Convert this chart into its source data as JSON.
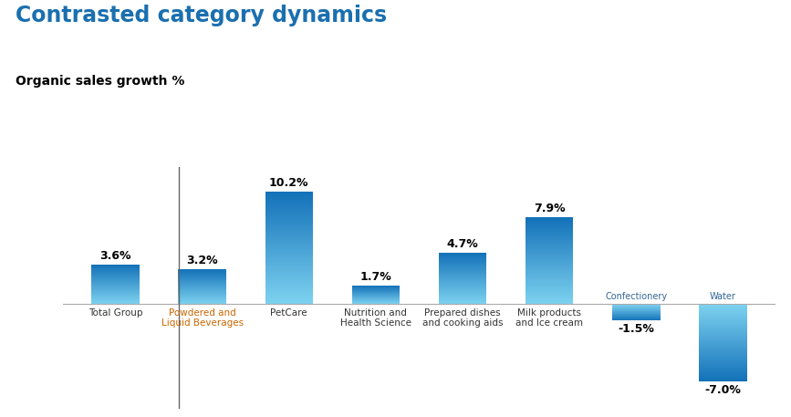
{
  "title": "Contrasted category dynamics",
  "subtitle": "Organic sales growth %",
  "categories": [
    "Total Group",
    "Powdered and\nLiquid Beverages",
    "PetCare",
    "Nutrition and\nHealth Science",
    "Prepared dishes\nand cooking aids",
    "Milk products\nand Ice cream",
    "Confectionery",
    "Water"
  ],
  "values": [
    3.6,
    3.2,
    10.2,
    1.7,
    4.7,
    7.9,
    -1.5,
    -7.0
  ],
  "bar_color_dark": "#1371b8",
  "bar_color_light": "#7dd2f0",
  "background_color": "#ffffff",
  "title_color": "#1a6faf",
  "subtitle_color": "#000000",
  "value_color": "#000000",
  "label_colors": [
    "#333333",
    "#cc6600",
    "#333333",
    "#333333",
    "#333333",
    "#333333",
    "#336699",
    "#336699"
  ],
  "ylim": [
    -9.5,
    12.5
  ],
  "figsize": [
    8.67,
    4.57
  ],
  "dpi": 100,
  "bar_width": 0.55,
  "num_gradient_steps": 150
}
